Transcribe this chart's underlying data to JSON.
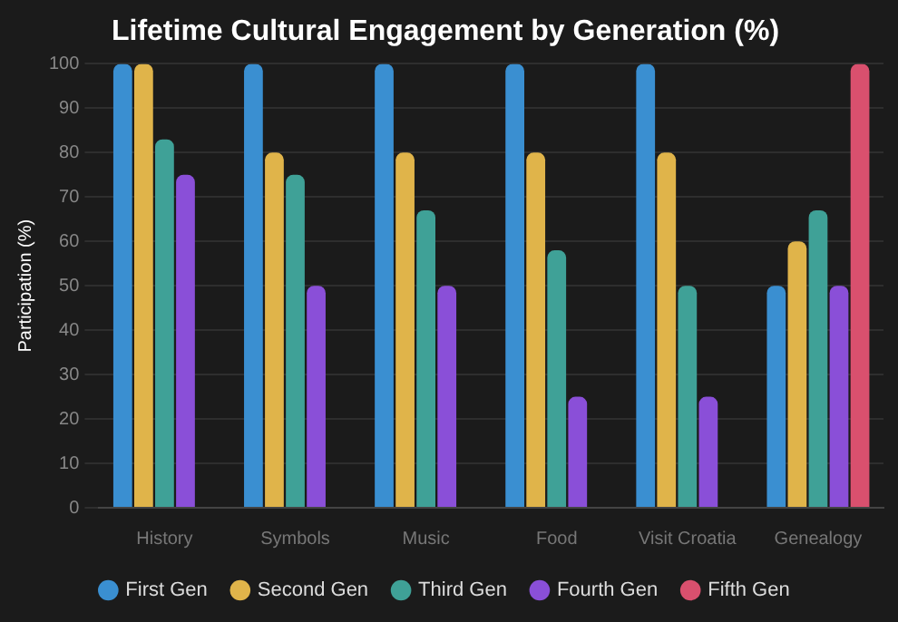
{
  "chart_data": {
    "type": "bar",
    "title": "Lifetime Cultural Engagement by Generation (%)",
    "ylabel": "Participation (%)",
    "categories": [
      "History",
      "Symbols",
      "Music",
      "Food",
      "Visit Croatia",
      "Genealogy"
    ],
    "series": [
      {
        "name": "First Gen",
        "color": "#3a8fd1",
        "values": [
          100,
          100,
          100,
          100,
          100,
          50
        ]
      },
      {
        "name": "Second Gen",
        "color": "#e0b44a",
        "values": [
          100,
          80,
          80,
          80,
          80,
          60
        ]
      },
      {
        "name": "Third Gen",
        "color": "#3fa197",
        "values": [
          83,
          75,
          67,
          58,
          50,
          67
        ]
      },
      {
        "name": "Fourth Gen",
        "color": "#8a4fd8",
        "values": [
          75,
          50,
          50,
          25,
          25,
          50
        ]
      },
      {
        "name": "Fifth Gen",
        "color": "#d9506e",
        "values": [
          null,
          null,
          null,
          null,
          null,
          100
        ]
      }
    ],
    "ylim": [
      0,
      100
    ],
    "yticks": [
      0,
      10,
      20,
      30,
      40,
      50,
      60,
      70,
      80,
      90,
      100
    ],
    "grid": "y",
    "legend": "bottom"
  }
}
